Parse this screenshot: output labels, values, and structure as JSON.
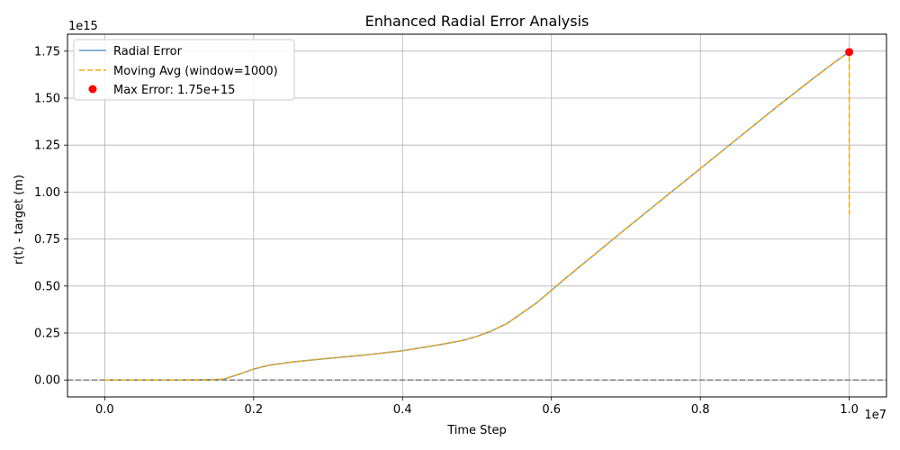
{
  "chart_data": {
    "type": "line",
    "title": "Enhanced Radial Error Analysis",
    "xlabel": "Time Step",
    "ylabel": "r(t) - target (m)",
    "x_offset_label": "1e7",
    "y_offset_label": "1e15",
    "x_scale": 10000000,
    "y_scale": 1000000000000000,
    "xlim": [
      -0.05,
      1.05
    ],
    "ylim": [
      -0.09,
      1.84
    ],
    "x_ticks": [
      0.0,
      0.2,
      0.4,
      0.6,
      0.8,
      1.0
    ],
    "x_tick_labels": [
      "0.0",
      "0.2",
      "0.4",
      "0.6",
      "0.8",
      "1.0"
    ],
    "y_ticks": [
      0.0,
      0.25,
      0.5,
      0.75,
      1.0,
      1.25,
      1.5,
      1.75
    ],
    "y_tick_labels": [
      "0.00",
      "0.25",
      "0.50",
      "0.75",
      "1.00",
      "1.25",
      "1.50",
      "1.75"
    ],
    "grid": true,
    "legend_position": "upper-left",
    "reference_line": {
      "y": 0,
      "style": "dashed",
      "color": "#808080"
    },
    "series": [
      {
        "name": "Radial Error",
        "color": "#1f77b4",
        "style": "solid",
        "x": [
          0,
          0.05,
          0.1,
          0.15,
          0.16,
          0.18,
          0.2,
          0.22,
          0.25,
          0.3,
          0.35,
          0.4,
          0.45,
          0.48,
          0.5,
          0.52,
          0.54,
          0.58,
          0.62,
          0.66,
          0.7,
          0.75,
          0.8,
          0.85,
          0.9,
          0.95,
          0.98,
          1.0
        ],
        "y": [
          0,
          0,
          0,
          0.002,
          0.005,
          0.03,
          0.058,
          0.078,
          0.095,
          0.115,
          0.133,
          0.155,
          0.188,
          0.21,
          0.232,
          0.262,
          0.3,
          0.41,
          0.545,
          0.675,
          0.805,
          0.965,
          1.125,
          1.285,
          1.445,
          1.6,
          1.69,
          1.745
        ]
      },
      {
        "name": "Moving Avg (window=1000)",
        "color": "#ffa500",
        "style": "dashed",
        "x": [
          0,
          0.05,
          0.1,
          0.15,
          0.16,
          0.18,
          0.2,
          0.22,
          0.25,
          0.3,
          0.35,
          0.4,
          0.45,
          0.48,
          0.5,
          0.52,
          0.54,
          0.58,
          0.62,
          0.66,
          0.7,
          0.75,
          0.8,
          0.85,
          0.9,
          0.95,
          0.98,
          0.9999,
          1.0
        ],
        "y": [
          0,
          0,
          0,
          0.002,
          0.005,
          0.03,
          0.058,
          0.078,
          0.095,
          0.115,
          0.133,
          0.155,
          0.188,
          0.21,
          0.232,
          0.262,
          0.3,
          0.41,
          0.545,
          0.675,
          0.805,
          0.965,
          1.125,
          1.285,
          1.445,
          1.6,
          1.69,
          1.745,
          0.88
        ]
      }
    ],
    "max_point": {
      "name": "Max Error: 1.75e+15",
      "x": 1.0,
      "y": 1.745,
      "color": "#ff0000"
    }
  }
}
